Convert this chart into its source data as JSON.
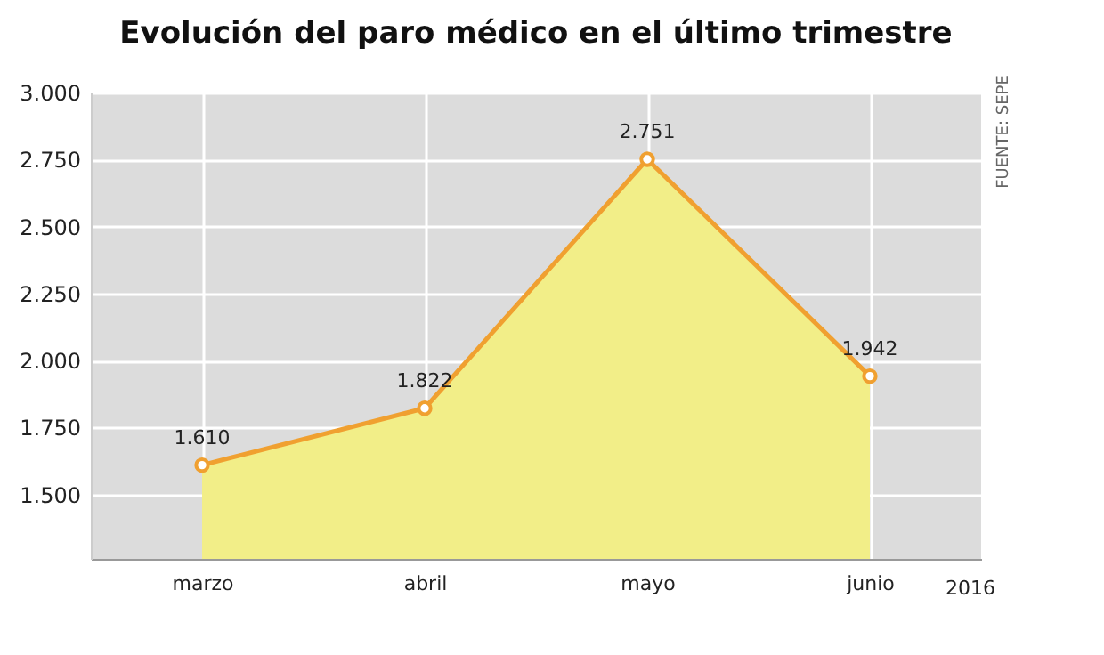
{
  "chart_data": {
    "type": "area",
    "title": "Evolución del paro médico en el último trimestre",
    "categories": [
      "marzo",
      "abril",
      "mayo",
      "junio"
    ],
    "series": [
      {
        "color": "#f0a030",
        "values": [
          1610,
          1822,
          2751,
          1942
        ]
      }
    ],
    "ylim": [
      1260,
      3000
    ],
    "yticks": [
      {
        "value": 1500,
        "label": "1.500"
      },
      {
        "value": 1750,
        "label": "1.750"
      },
      {
        "value": 2000,
        "label": "2.000"
      },
      {
        "value": 2250,
        "label": "2.250"
      },
      {
        "value": 2500,
        "label": "2.500"
      },
      {
        "value": 2750,
        "label": "2.750"
      },
      {
        "value": 3000,
        "label": "3.000"
      }
    ],
    "value_labels": [
      "1.610",
      "1.822",
      "2.751",
      "1.942"
    ],
    "annotations": [
      "FUENTE: SEPE",
      "2016"
    ],
    "marker": "circle",
    "grid": true
  }
}
